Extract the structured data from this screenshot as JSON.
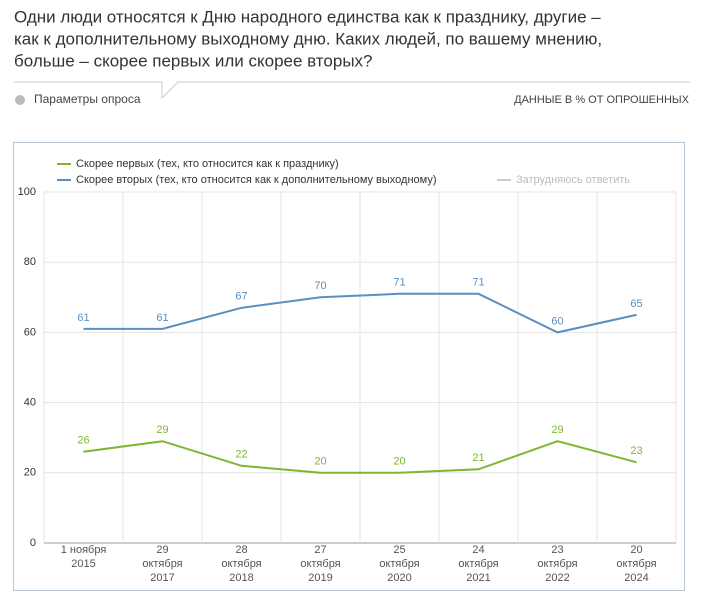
{
  "header": {
    "title": [
      "Одни люди относятся к Дню народного единства как к празднику, другие –",
      "как к дополнительному выходному дню. Каких людей, по вашему мнению,",
      "больше – скорее первых или скорее вторых?"
    ],
    "params": "Параметры опроса",
    "units": "ДАННЫЕ В % ОТ ОПРОШЕННЫХ"
  },
  "chart_data": {
    "type": "line",
    "categories": [
      "1 ноября\n2015",
      "29\nоктября\n2017",
      "28\nоктября\n2018",
      "27\nоктября\n2019",
      "25\nоктября\n2020",
      "24\nоктября\n2021",
      "23\nоктября\n2022",
      "20\nоктября\n2024"
    ],
    "series": [
      {
        "name": "Скорее первых (тех, кто относится как к празднику)",
        "color": "#7cb82f",
        "values": [
          26,
          29,
          22,
          20,
          20,
          21,
          29,
          23
        ]
      },
      {
        "name": "Скорее вторых (тех, кто относится как к дополнительному выходному)",
        "color": "#5b8fc0",
        "values": [
          61,
          61,
          67,
          70,
          71,
          71,
          60,
          65
        ]
      }
    ],
    "legend_inactive": [
      "Затрудняюсь ответить"
    ],
    "ylim": [
      0,
      100
    ],
    "yticks": [
      0,
      20,
      40,
      60,
      80,
      100
    ],
    "grid": true
  }
}
